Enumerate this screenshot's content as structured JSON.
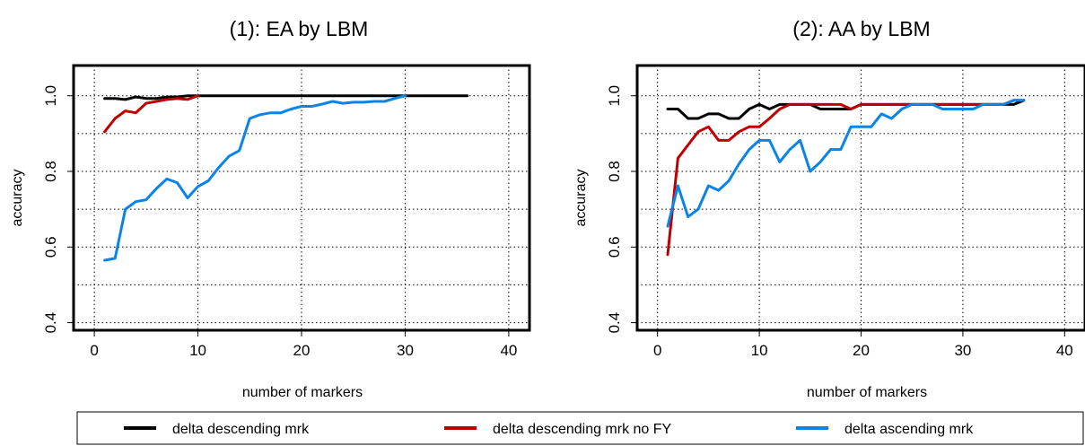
{
  "chart_data": [
    {
      "type": "line",
      "title": "(1): EA by LBM",
      "xlabel": "number of markers",
      "ylabel": "accuracy",
      "xlim": [
        -2,
        42
      ],
      "ylim": [
        0.38,
        1.08
      ],
      "xticks": [
        0,
        10,
        20,
        30,
        40
      ],
      "yticks": [
        0.4,
        0.6,
        0.8,
        1.0
      ],
      "xtick_labels": [
        "0",
        "10",
        "20",
        "30",
        "40"
      ],
      "ytick_labels": [
        "0.4",
        "0.6",
        "0.8",
        "1.0"
      ],
      "grid": true,
      "series": [
        {
          "key": "black",
          "color": "#000000",
          "x": [
            1,
            2,
            3,
            4,
            5,
            6,
            7,
            8,
            9,
            10,
            11,
            12,
            13,
            14,
            15,
            16,
            17,
            18,
            19,
            20,
            21,
            22,
            23,
            24,
            25,
            26,
            27,
            28,
            29,
            30,
            31,
            32,
            33,
            34,
            35,
            36
          ],
          "values": [
            0.993,
            0.993,
            0.99,
            0.997,
            0.993,
            0.993,
            0.997,
            0.997,
            1,
            1,
            1,
            1,
            1,
            1,
            1,
            1,
            1,
            1,
            1,
            1,
            1,
            1,
            1,
            1,
            1,
            1,
            1,
            1,
            1,
            1,
            1,
            1,
            1,
            1,
            1,
            1
          ]
        },
        {
          "key": "red",
          "color": "#c00000",
          "x": [
            1,
            2,
            3,
            4,
            5,
            6,
            7,
            8,
            9,
            10
          ],
          "values": [
            0.905,
            0.94,
            0.96,
            0.955,
            0.98,
            0.985,
            0.99,
            0.993,
            0.99,
            1
          ]
        },
        {
          "key": "blue",
          "color": "#0a84e8",
          "x": [
            1,
            2,
            3,
            4,
            5,
            6,
            7,
            8,
            9,
            10,
            11,
            12,
            13,
            14,
            15,
            16,
            17,
            18,
            19,
            20,
            21,
            22,
            23,
            24,
            25,
            26,
            27,
            28,
            29,
            30
          ],
          "values": [
            0.565,
            0.57,
            0.7,
            0.72,
            0.725,
            0.755,
            0.78,
            0.77,
            0.73,
            0.76,
            0.775,
            0.81,
            0.84,
            0.855,
            0.94,
            0.95,
            0.955,
            0.955,
            0.965,
            0.972,
            0.972,
            0.978,
            0.985,
            0.98,
            0.983,
            0.983,
            0.985,
            0.985,
            0.993,
            1
          ]
        }
      ]
    },
    {
      "type": "line",
      "title": "(2): AA by LBM",
      "xlabel": "number of markers",
      "ylabel": "accuracy",
      "xlim": [
        -2,
        42
      ],
      "ylim": [
        0.38,
        1.08
      ],
      "xticks": [
        0,
        10,
        20,
        30,
        40
      ],
      "yticks": [
        0.4,
        0.6,
        0.8,
        1.0
      ],
      "xtick_labels": [
        "0",
        "10",
        "20",
        "30",
        "40"
      ],
      "ytick_labels": [
        "0.4",
        "0.6",
        "0.8",
        "1.0"
      ],
      "grid": true,
      "series": [
        {
          "key": "black",
          "color": "#000000",
          "x": [
            1,
            2,
            3,
            4,
            5,
            6,
            7,
            8,
            9,
            10,
            11,
            12,
            13,
            14,
            15,
            16,
            17,
            18,
            19,
            20,
            21,
            22,
            23,
            24,
            25,
            26,
            27,
            28,
            29,
            30,
            31,
            32,
            33,
            34,
            35,
            36
          ],
          "values": [
            0.965,
            0.965,
            0.94,
            0.94,
            0.952,
            0.952,
            0.94,
            0.94,
            0.965,
            0.977,
            0.965,
            0.977,
            0.977,
            0.977,
            0.977,
            0.965,
            0.965,
            0.965,
            0.965,
            0.977,
            0.977,
            0.977,
            0.977,
            0.977,
            0.977,
            0.977,
            0.977,
            0.977,
            0.977,
            0.977,
            0.977,
            0.977,
            0.977,
            0.977,
            0.977,
            0.988
          ]
        },
        {
          "key": "red",
          "color": "#c00000",
          "x": [
            1,
            2,
            3,
            4,
            5,
            6,
            7,
            8,
            9,
            10,
            11,
            12,
            13,
            14,
            15,
            16,
            17,
            18,
            19,
            20,
            21,
            22,
            23,
            24,
            25,
            26,
            27,
            28,
            29,
            30,
            31,
            32,
            33,
            34,
            35,
            36
          ],
          "values": [
            0.58,
            0.835,
            0.87,
            0.905,
            0.918,
            0.882,
            0.882,
            0.905,
            0.918,
            0.918,
            0.94,
            0.965,
            0.977,
            0.977,
            0.977,
            0.977,
            0.977,
            0.977,
            0.965,
            0.977,
            0.977,
            0.977,
            0.977,
            0.977,
            0.977,
            0.977,
            0.977,
            0.977,
            0.977,
            0.977,
            0.977,
            0.977,
            0.977,
            0.977,
            0.988,
            0.988
          ]
        },
        {
          "key": "blue",
          "color": "#0a84e8",
          "x": [
            1,
            2,
            3,
            4,
            5,
            6,
            7,
            8,
            9,
            10,
            11,
            12,
            13,
            14,
            15,
            16,
            17,
            18,
            19,
            20,
            21,
            22,
            23,
            24,
            25,
            26,
            27,
            28,
            29,
            30,
            31,
            32,
            33,
            34,
            35,
            36
          ],
          "values": [
            0.655,
            0.762,
            0.68,
            0.7,
            0.762,
            0.75,
            0.775,
            0.82,
            0.858,
            0.882,
            0.882,
            0.825,
            0.858,
            0.882,
            0.8,
            0.825,
            0.858,
            0.858,
            0.918,
            0.918,
            0.918,
            0.952,
            0.94,
            0.965,
            0.977,
            0.977,
            0.977,
            0.965,
            0.965,
            0.965,
            0.965,
            0.977,
            0.977,
            0.977,
            0.988,
            0.988
          ]
        }
      ]
    }
  ],
  "legend": {
    "placement": "bottom",
    "items": [
      {
        "label": "delta descending mrk",
        "color": "#000000"
      },
      {
        "label": "delta descending mrk no FY",
        "color": "#c00000"
      },
      {
        "label": "delta ascending mrk",
        "color": "#0a84e8"
      }
    ]
  }
}
